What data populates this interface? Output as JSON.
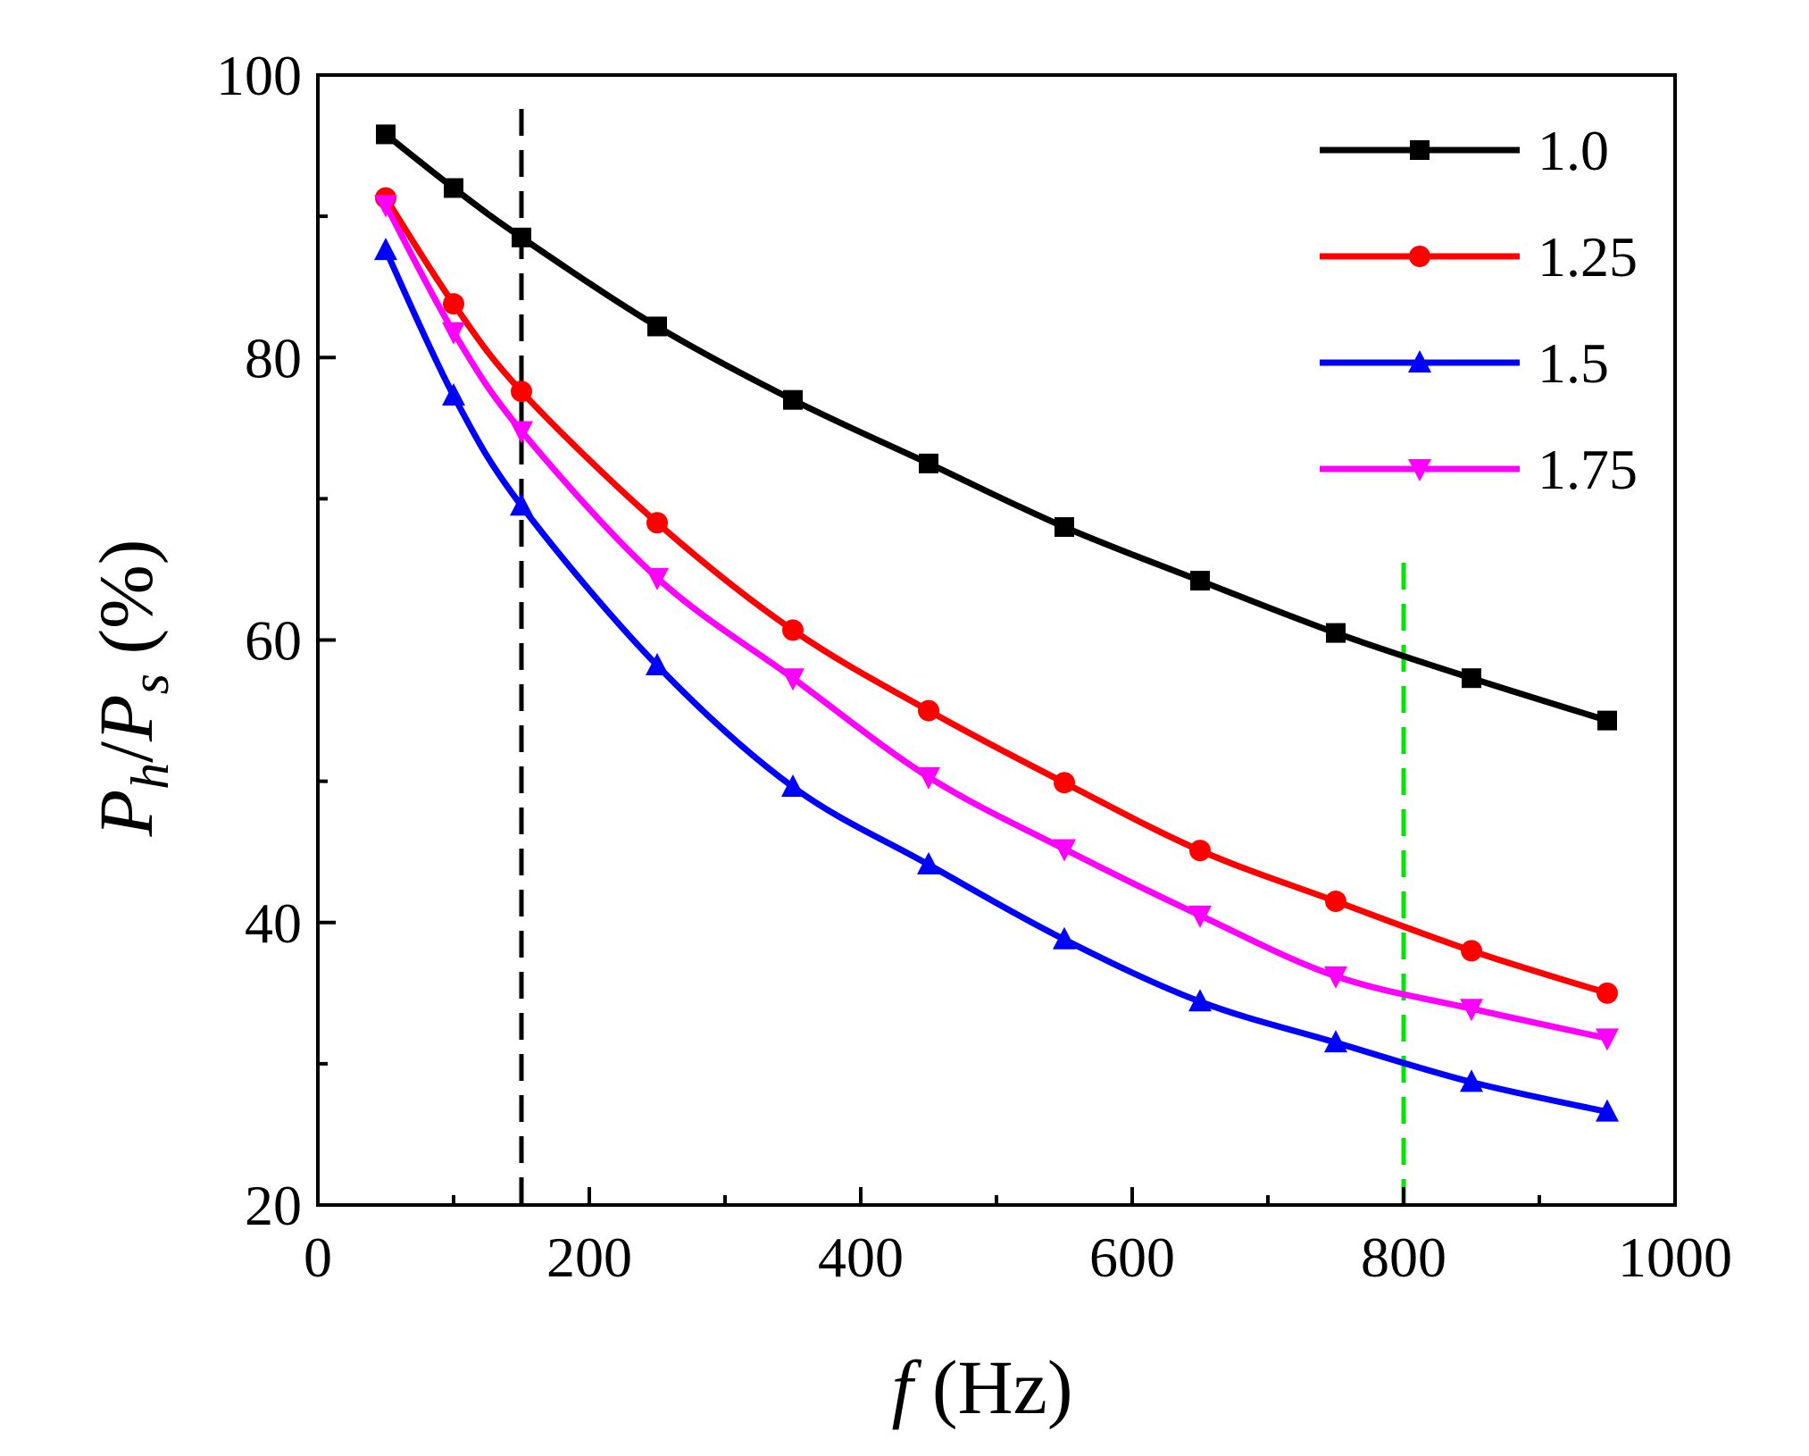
{
  "chart_data": {
    "type": "line",
    "title": "",
    "xlabel": {
      "var": "f",
      "unit": "(Hz)"
    },
    "ylabel": {
      "num": "P",
      "num_sub": "h",
      "den": "P",
      "den_sub": "s",
      "unit": "(%)"
    },
    "xlim": [
      0,
      1000
    ],
    "ylim": [
      20,
      100
    ],
    "xticks": [
      0,
      200,
      400,
      600,
      800,
      1000
    ],
    "yticks": [
      20,
      40,
      60,
      80,
      100
    ],
    "x": [
      50,
      100,
      150,
      250,
      350,
      450,
      550,
      650,
      750,
      850,
      950
    ],
    "series": [
      {
        "name": "1.0",
        "color": "#000000",
        "marker": "square",
        "values": [
          95.8,
          92,
          88.5,
          82.2,
          77,
          72.5,
          68,
          64.2,
          60.5,
          57.3,
          54.3
        ]
      },
      {
        "name": "1.25",
        "color": "#ff0000",
        "marker": "circle",
        "values": [
          91.3,
          83.8,
          77.6,
          68.3,
          60.7,
          55,
          49.9,
          45.1,
          41.5,
          38,
          35
        ]
      },
      {
        "name": "1.5",
        "color": "#0000ff",
        "marker": "triangle-up",
        "values": [
          87.6,
          77.3,
          69.5,
          58.2,
          49.6,
          44.1,
          38.8,
          34.4,
          31.5,
          28.7,
          26.6
        ]
      },
      {
        "name": "1.75",
        "color": "#ff00ff",
        "marker": "triangle-down",
        "values": [
          90.8,
          81.8,
          74.8,
          64.4,
          57.3,
          50.3,
          45.2,
          40.5,
          36.2,
          33.9,
          31.8
        ]
      }
    ],
    "reference_lines": [
      {
        "x": 150,
        "color": "#000000",
        "style": "dashed"
      },
      {
        "x": 800,
        "color": "#00e600",
        "style": "dashed"
      }
    ],
    "legend_position": "top-right"
  }
}
